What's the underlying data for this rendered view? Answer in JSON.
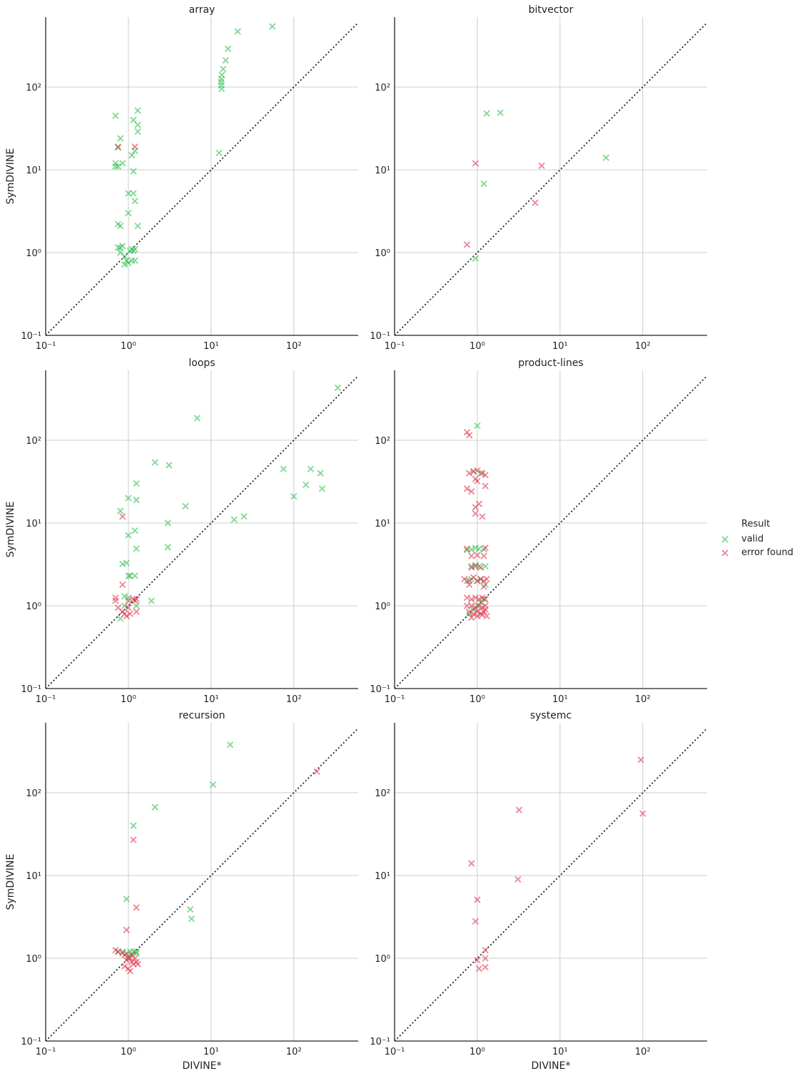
{
  "legend": {
    "title": "Result",
    "entries": [
      {
        "label": "valid",
        "color": "#2dbe4e"
      },
      {
        "label": "error found",
        "color": "#e0354f"
      }
    ]
  },
  "chart_data": [
    {
      "type": "scatter",
      "title": "array",
      "xlabel": "",
      "ylabel": "SymDIVINE",
      "xscale": "log",
      "yscale": "log",
      "xlim": [
        0.1,
        600
      ],
      "ylim": [
        0.1,
        700
      ],
      "grid": true,
      "xticks": [
        "10⁻¹",
        "10⁰",
        "10¹",
        "10²"
      ],
      "yticks": [
        "10⁻¹",
        "10⁰",
        "10¹",
        "10²"
      ],
      "reference_line": "y = x",
      "series": [
        {
          "name": "valid",
          "points": [
            [
              55,
              540
            ],
            [
              21,
              470
            ],
            [
              16,
              290
            ],
            [
              15,
              210
            ],
            [
              14,
              165
            ],
            [
              13.5,
              140
            ],
            [
              13.3,
              125
            ],
            [
              13.2,
              115
            ],
            [
              13.3,
              105
            ],
            [
              13.4,
              95
            ],
            [
              12.5,
              16
            ],
            [
              0.7,
              45
            ],
            [
              0.8,
              24
            ],
            [
              0.75,
              18.5
            ],
            [
              1.3,
              52
            ],
            [
              1.15,
              40
            ],
            [
              1.3,
              35
            ],
            [
              1.3,
              29
            ],
            [
              1.2,
              17
            ],
            [
              1.1,
              15
            ],
            [
              0.7,
              12
            ],
            [
              0.7,
              11
            ],
            [
              0.75,
              11
            ],
            [
              0.85,
              12
            ],
            [
              1.15,
              9.6
            ],
            [
              1.0,
              5.2
            ],
            [
              1.15,
              5.2
            ],
            [
              1.2,
              4.2
            ],
            [
              1.0,
              3.0
            ],
            [
              0.75,
              2.2
            ],
            [
              0.8,
              2.1
            ],
            [
              1.3,
              2.1
            ],
            [
              0.75,
              1.15
            ],
            [
              0.8,
              1.15
            ],
            [
              0.85,
              1.2
            ],
            [
              1.05,
              1.05
            ],
            [
              1.1,
              1.1
            ],
            [
              1.15,
              1.05
            ],
            [
              1.2,
              1.1
            ],
            [
              0.8,
              1.0
            ],
            [
              0.9,
              0.9
            ],
            [
              0.95,
              0.8
            ],
            [
              1.0,
              0.75
            ],
            [
              0.9,
              0.72
            ],
            [
              1.1,
              0.8
            ],
            [
              1.2,
              0.8
            ]
          ]
        },
        {
          "name": "error found",
          "points": [
            [
              0.75,
              19
            ],
            [
              1.2,
              19
            ]
          ]
        }
      ]
    },
    {
      "type": "scatter",
      "title": "bitvector",
      "xlabel": "",
      "ylabel": "",
      "xscale": "log",
      "yscale": "log",
      "xlim": [
        0.1,
        600
      ],
      "ylim": [
        0.1,
        700
      ],
      "grid": true,
      "xticks": [
        "10⁻¹",
        "10⁰",
        "10¹",
        "10²"
      ],
      "yticks": [
        "10⁻¹",
        "10⁰",
        "10¹",
        "10²"
      ],
      "reference_line": "y = x",
      "series": [
        {
          "name": "valid",
          "points": [
            [
              1.3,
              48
            ],
            [
              1.9,
              49
            ],
            [
              36,
              14
            ],
            [
              1.2,
              6.8
            ],
            [
              0.95,
              0.85
            ]
          ]
        },
        {
          "name": "error found",
          "points": [
            [
              0.95,
              12
            ],
            [
              6,
              11.2
            ],
            [
              5,
              4.0
            ],
            [
              0.75,
              1.25
            ]
          ]
        }
      ]
    },
    {
      "type": "scatter",
      "title": "loops",
      "xlabel": "",
      "ylabel": "SymDIVINE",
      "xscale": "log",
      "yscale": "log",
      "xlim": [
        0.1,
        600
      ],
      "ylim": [
        0.1,
        700
      ],
      "grid": true,
      "xticks": [
        "10⁻¹",
        "10⁰",
        "10¹",
        "10²"
      ],
      "yticks": [
        "10⁻¹",
        "10⁰",
        "10¹",
        "10²"
      ],
      "reference_line": "y = x",
      "series": [
        {
          "name": "valid",
          "points": [
            [
              340,
              430
            ],
            [
              6.8,
              185
            ],
            [
              2.1,
              54
            ],
            [
              3.1,
              50
            ],
            [
              75,
              45
            ],
            [
              160,
              45
            ],
            [
              210,
              40
            ],
            [
              140,
              29
            ],
            [
              220,
              26
            ],
            [
              100,
              21
            ],
            [
              1.25,
              30
            ],
            [
              1.0,
              20
            ],
            [
              1.25,
              19
            ],
            [
              0.8,
              14
            ],
            [
              4.9,
              16
            ],
            [
              25,
              12
            ],
            [
              19,
              11
            ],
            [
              3.0,
              10
            ],
            [
              1.2,
              8.1
            ],
            [
              1.0,
              7.1
            ],
            [
              1.25,
              4.9
            ],
            [
              3.0,
              5.1
            ],
            [
              0.85,
              3.2
            ],
            [
              0.95,
              3.3
            ],
            [
              1.0,
              2.3
            ],
            [
              1.05,
              2.3
            ],
            [
              1.2,
              2.3
            ],
            [
              1.9,
              1.15
            ],
            [
              0.9,
              1.3
            ],
            [
              1.0,
              1.25
            ],
            [
              1.25,
              1.0
            ],
            [
              0.8,
              0.7
            ],
            [
              0.9,
              1.0
            ]
          ]
        },
        {
          "name": "error found",
          "points": [
            [
              0.85,
              12
            ],
            [
              0.85,
              1.8
            ],
            [
              0.7,
              1.25
            ],
            [
              0.7,
              1.15
            ],
            [
              1.0,
              1.15
            ],
            [
              1.15,
              1.2
            ],
            [
              1.2,
              1.15
            ],
            [
              1.25,
              1.2
            ],
            [
              0.75,
              0.95
            ],
            [
              0.85,
              0.85
            ],
            [
              0.9,
              0.8
            ],
            [
              0.95,
              0.75
            ],
            [
              1.0,
              0.95
            ],
            [
              1.05,
              0.8
            ],
            [
              1.25,
              0.85
            ]
          ]
        }
      ]
    },
    {
      "type": "scatter",
      "title": "product-lines",
      "xlabel": "",
      "ylabel": "",
      "xscale": "log",
      "yscale": "log",
      "xlim": [
        0.1,
        600
      ],
      "ylim": [
        0.1,
        700
      ],
      "grid": true,
      "xticks": [
        "10⁻¹",
        "10⁰",
        "10¹",
        "10²"
      ],
      "yticks": [
        "10⁻¹",
        "10⁰",
        "10¹",
        "10²"
      ],
      "reference_line": "y = x",
      "series": [
        {
          "name": "valid",
          "points": [
            [
              1.0,
              150
            ],
            [
              0.9,
              42
            ],
            [
              1.1,
              40
            ],
            [
              0.75,
              4.7
            ],
            [
              0.85,
              4.8
            ],
            [
              0.95,
              5.0
            ],
            [
              1.05,
              4.9
            ],
            [
              1.2,
              4.8
            ],
            [
              0.85,
              3.0
            ],
            [
              0.95,
              3.1
            ],
            [
              1.05,
              3.0
            ],
            [
              1.25,
              3.0
            ],
            [
              0.75,
              2.0
            ],
            [
              0.85,
              2.1
            ],
            [
              1.0,
              2.0
            ],
            [
              1.1,
              2.1
            ],
            [
              1.25,
              1.8
            ],
            [
              0.8,
              0.8
            ],
            [
              0.9,
              0.9
            ],
            [
              1.0,
              1.0
            ],
            [
              1.1,
              1.1
            ],
            [
              1.2,
              1.2
            ]
          ]
        },
        {
          "name": "error found",
          "points": [
            [
              0.75,
              125
            ],
            [
              0.8,
              115
            ],
            [
              0.8,
              40
            ],
            [
              0.9,
              42
            ],
            [
              1.0,
              43
            ],
            [
              1.15,
              40
            ],
            [
              1.25,
              38
            ],
            [
              0.95,
              34
            ],
            [
              1.0,
              32
            ],
            [
              1.25,
              28
            ],
            [
              0.75,
              26
            ],
            [
              0.85,
              24
            ],
            [
              1.05,
              17
            ],
            [
              0.95,
              15.5
            ],
            [
              0.95,
              13
            ],
            [
              1.15,
              12
            ],
            [
              0.75,
              4.9
            ],
            [
              0.85,
              4.0
            ],
            [
              1.0,
              4.1
            ],
            [
              1.2,
              4.0
            ],
            [
              1.25,
              5.0
            ],
            [
              0.85,
              2.9
            ],
            [
              0.95,
              3.0
            ],
            [
              1.1,
              2.9
            ],
            [
              0.7,
              2.1
            ],
            [
              0.8,
              2.0
            ],
            [
              0.9,
              2.2
            ],
            [
              1.0,
              2.0
            ],
            [
              1.1,
              2.1
            ],
            [
              1.2,
              2.0
            ],
            [
              1.3,
              2.1
            ],
            [
              0.8,
              1.8
            ],
            [
              1.2,
              1.7
            ],
            [
              0.75,
              1.25
            ],
            [
              0.85,
              1.2
            ],
            [
              0.95,
              1.25
            ],
            [
              1.05,
              1.2
            ],
            [
              1.15,
              1.25
            ],
            [
              1.25,
              1.2
            ],
            [
              0.75,
              1.0
            ],
            [
              0.85,
              1.0
            ],
            [
              0.95,
              0.95
            ],
            [
              1.05,
              1.0
            ],
            [
              1.15,
              0.95
            ],
            [
              1.25,
              1.0
            ],
            [
              0.8,
              0.85
            ],
            [
              0.9,
              0.8
            ],
            [
              1.0,
              0.85
            ],
            [
              1.1,
              0.8
            ],
            [
              1.2,
              0.85
            ],
            [
              1.3,
              0.75
            ],
            [
              0.85,
              0.72
            ],
            [
              1.0,
              0.75
            ],
            [
              1.15,
              0.78
            ],
            [
              1.25,
              0.9
            ]
          ]
        }
      ]
    },
    {
      "type": "scatter",
      "title": "recursion",
      "xlabel": "DIVINE*",
      "ylabel": "SymDIVINE",
      "xscale": "log",
      "yscale": "log",
      "xlim": [
        0.1,
        600
      ],
      "ylim": [
        0.1,
        700
      ],
      "grid": true,
      "xticks": [
        "10⁻¹",
        "10⁰",
        "10¹",
        "10²"
      ],
      "yticks": [
        "10⁻¹",
        "10⁰",
        "10¹",
        "10²"
      ],
      "reference_line": "y = x",
      "series": [
        {
          "name": "valid",
          "points": [
            [
              17,
              380
            ],
            [
              10.5,
              125
            ],
            [
              2.1,
              67
            ],
            [
              1.15,
              40
            ],
            [
              0.95,
              5.2
            ],
            [
              5.6,
              3.9
            ],
            [
              5.8,
              3.0
            ],
            [
              0.75,
              1.2
            ],
            [
              0.85,
              1.2
            ],
            [
              0.95,
              1.15
            ],
            [
              1.05,
              1.2
            ],
            [
              1.15,
              1.2
            ],
            [
              1.25,
              1.2
            ],
            [
              1.0,
              1.0
            ],
            [
              1.25,
              1.15
            ]
          ]
        },
        {
          "name": "error found",
          "points": [
            [
              190,
              180
            ],
            [
              1.15,
              27
            ],
            [
              1.25,
              4.1
            ],
            [
              0.95,
              2.2
            ],
            [
              0.7,
              1.25
            ],
            [
              0.75,
              1.2
            ],
            [
              0.85,
              1.15
            ],
            [
              0.9,
              1.1
            ],
            [
              1.0,
              1.05
            ],
            [
              1.05,
              1.0
            ],
            [
              1.1,
              1.1
            ],
            [
              1.2,
              1.0
            ],
            [
              0.9,
              0.8
            ],
            [
              1.0,
              0.75
            ],
            [
              1.05,
              0.7
            ],
            [
              1.15,
              0.85
            ],
            [
              1.25,
              0.9
            ],
            [
              1.3,
              0.85
            ],
            [
              0.95,
              0.95
            ],
            [
              1.1,
              0.9
            ]
          ]
        }
      ]
    },
    {
      "type": "scatter",
      "title": "systemc",
      "xlabel": "DIVINE*",
      "ylabel": "",
      "xscale": "log",
      "yscale": "log",
      "xlim": [
        0.1,
        600
      ],
      "ylim": [
        0.1,
        700
      ],
      "grid": true,
      "xticks": [
        "10⁻¹",
        "10⁰",
        "10¹",
        "10²"
      ],
      "yticks": [
        "10⁻¹",
        "10⁰",
        "10¹",
        "10²"
      ],
      "reference_line": "y = x",
      "series": [
        {
          "name": "valid",
          "points": []
        },
        {
          "name": "error found",
          "points": [
            [
              95,
              250
            ],
            [
              100,
              56
            ],
            [
              3.2,
              62
            ],
            [
              0.85,
              14
            ],
            [
              3.1,
              9.0
            ],
            [
              1.0,
              5.1
            ],
            [
              0.95,
              2.8
            ],
            [
              1.0,
              0.95
            ],
            [
              1.05,
              0.75
            ],
            [
              1.25,
              1.25
            ],
            [
              1.25,
              1.0
            ],
            [
              1.25,
              0.78
            ]
          ]
        }
      ]
    }
  ]
}
